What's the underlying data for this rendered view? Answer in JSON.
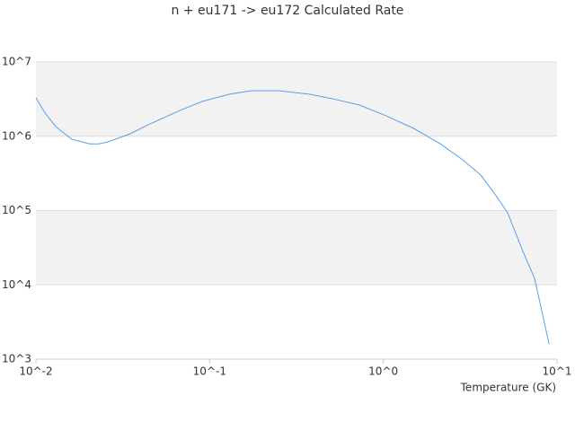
{
  "chart_data": {
    "type": "line",
    "title": "n + eu171 -> eu172 Calculated Rate",
    "x_label": "Temperature (GK)",
    "x": [
      0.01,
      0.0113,
      0.013,
      0.0161,
      0.0204,
      0.023,
      0.026,
      0.0349,
      0.0443,
      0.0673,
      0.0906,
      0.129,
      0.174,
      0.249,
      0.378,
      0.509,
      0.728,
      1.04,
      1.49,
      2.13,
      2.87,
      3.64,
      4.46,
      5.2,
      6.37,
      7.43,
      9.0
    ],
    "series": [
      {
        "name": "rate",
        "color": "#5aa0e6",
        "values": [
          3300000,
          2050000,
          1350000,
          910000,
          790000,
          790000,
          840000,
          1080000,
          1430000,
          2220000,
          2940000,
          3670000,
          4100000,
          4100000,
          3670000,
          3200000,
          2630000,
          1880000,
          1280000,
          790000,
          480000,
          300000,
          158000,
          93000,
          28000,
          12200,
          1600
        ]
      }
    ],
    "log_x": true,
    "log_y": true,
    "xlim": [
      0.01,
      10
    ],
    "ylim": [
      1000,
      10000000
    ],
    "xticks": [
      {
        "value": 0.01,
        "label": "10^-2"
      },
      {
        "value": 0.1,
        "label": "10^-1"
      },
      {
        "value": 1,
        "label": "10^0"
      },
      {
        "value": 10,
        "label": "10^1"
      }
    ],
    "yticks": [
      {
        "value": 1000,
        "label": "10^3"
      },
      {
        "value": 10000,
        "label": "10^4"
      },
      {
        "value": 100000,
        "label": "10^5"
      },
      {
        "value": 1000000,
        "label": "10^6"
      },
      {
        "value": 10000000,
        "label": "10^7"
      }
    ],
    "grid": true,
    "band_color": "#f2f2f2"
  }
}
